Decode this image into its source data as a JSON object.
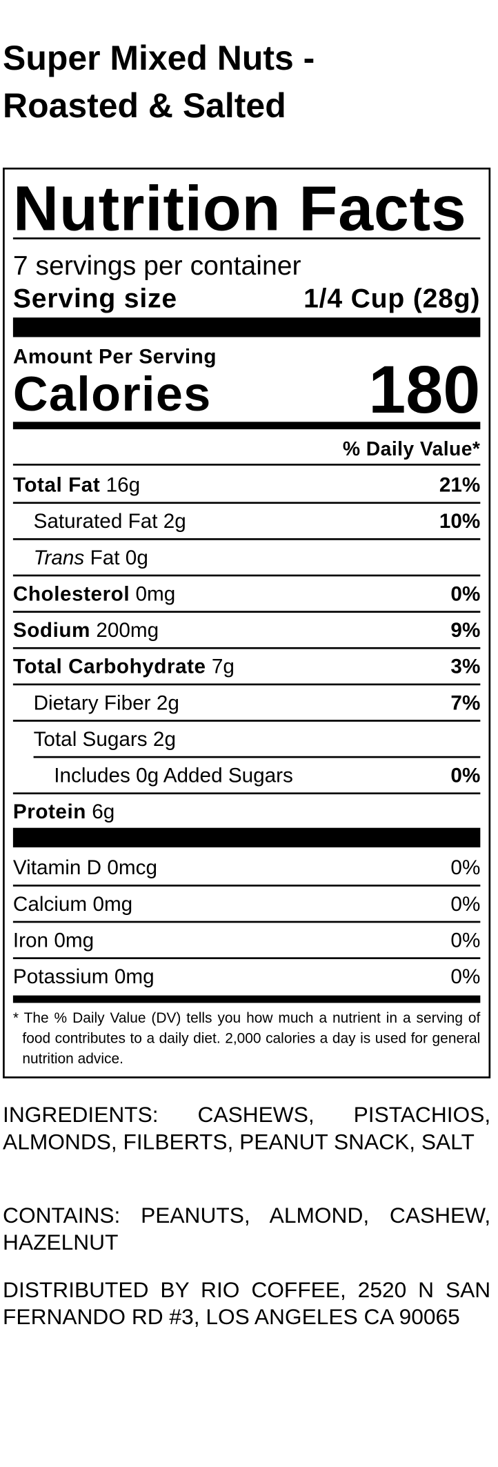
{
  "title_lines": [
    "Super Mixed Nuts -",
    "Roasted & Salted"
  ],
  "label": {
    "heading": "Nutrition Facts",
    "servings": "7 servings per container",
    "serving_size_label": "Serving size",
    "serving_size": "1/4 Cup (28g)",
    "amount_per_serving": "Amount Per Serving",
    "calories_label": "Calories",
    "calories": "180",
    "dv_header": "% Daily Value*",
    "nutrients": [
      {
        "name": "Total Fat",
        "amount": "16g",
        "dv": "21%",
        "level": 0
      },
      {
        "name": "Saturated Fat",
        "amount": "2g",
        "dv": "10%",
        "level": 1
      },
      {
        "name_italic": "Trans",
        "name": "Fat",
        "amount": "0g",
        "level": 1
      },
      {
        "name": "Cholesterol",
        "amount": "0mg",
        "dv": "0%",
        "level": 0
      },
      {
        "name": "Sodium",
        "amount": "200mg",
        "dv": "9%",
        "level": 0
      },
      {
        "name": "Total Carbohydrate",
        "amount": "7g",
        "dv": "3%",
        "level": 0
      },
      {
        "name": "Dietary Fiber",
        "amount": "2g",
        "dv": "7%",
        "level": 1
      },
      {
        "name": "Total Sugars",
        "amount": "2g",
        "level": 1
      },
      {
        "name": "Includes 0g Added Sugars",
        "dv": "0%",
        "level": 2
      },
      {
        "name": "Protein",
        "amount": "6g",
        "level": 0
      }
    ],
    "vitamins": [
      {
        "name": "Vitamin D",
        "amount": "0mcg",
        "dv": "0%"
      },
      {
        "name": "Calcium",
        "amount": "0mg",
        "dv": "0%"
      },
      {
        "name": "Iron",
        "amount": "0mg",
        "dv": "0%"
      },
      {
        "name": "Potassium",
        "amount": "0mg",
        "dv": "0%"
      }
    ],
    "footnote": "* The % Daily Value (DV) tells you how much a nutrient in a serving of food contributes to a daily diet. 2,000 calories a day is used for general nutrition advice."
  },
  "ingredients": "INGREDIENTS: CASHEWS, PISTACHIOS, ALMONDS, FILBERTS, PEANUT SNACK, SALT",
  "contains": "CONTAINS: PEANUTS, ALMOND, CASHEW, HAZELNUT",
  "distributor": "DISTRIBUTED BY RIO COFFEE, 2520 N SAN FERNANDO RD #3, LOS ANGELES CA 90065"
}
